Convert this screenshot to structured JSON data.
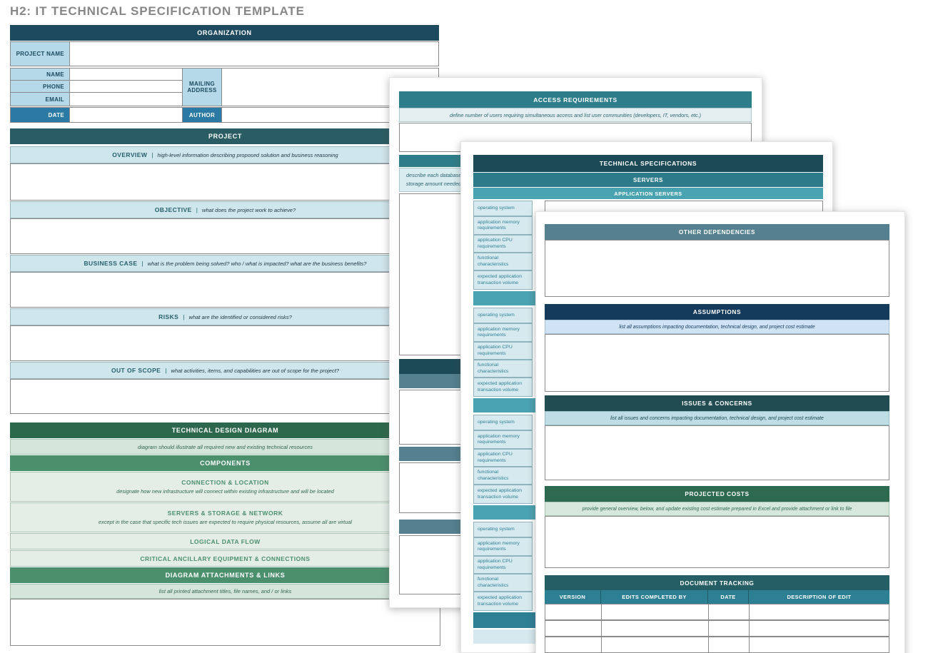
{
  "title": "H2: IT TECHNICAL SPECIFICATION TEMPLATE",
  "sep": "|",
  "palette": {
    "navy_header": "#1d4a5f",
    "dark_teal_header": "#2a5d63",
    "label_blue": "#b5d9e8",
    "date_author_blue": "#2a7aa5",
    "bar_blue": "#cfe6ec",
    "dark_green": "#2e684c",
    "mid_green": "#4b8f6d",
    "light_green": "#d5e5da",
    "teal_header": "#2d7e8a",
    "light_teal_band": "#4aa3b0",
    "slate_header": "#54808f",
    "assumptions_navy": "#143a5c",
    "issues_teal": "#214c52",
    "doc_tracking_teal": "#265e66",
    "doc_tracking_sub": "#2d7f94",
    "title_gray": "#878787"
  },
  "organization": {
    "header": "ORGANIZATION",
    "project_name_label": "PROJECT NAME",
    "name_label": "NAME",
    "phone_label": "PHONE",
    "email_label": "EMAIL",
    "mailing_address_label": "MAILING ADDRESS",
    "date_label": "DATE",
    "author_label": "AUTHOR"
  },
  "project": {
    "header": "PROJECT",
    "sections": [
      {
        "label": "OVERVIEW",
        "desc": "high-level information describing proposed solution and business reasoning"
      },
      {
        "label": "OBJECTIVE",
        "desc": "what does the project work to achieve?"
      },
      {
        "label": "BUSINESS CASE",
        "desc": "what is the problem being solved?  who / what is impacted?  what are the business benefits?"
      },
      {
        "label": "RISKS",
        "desc": "what are the identified or considered risks?"
      },
      {
        "label": "OUT OF SCOPE",
        "desc": "what activities, items, and capabilities are out of scope for the project?"
      }
    ]
  },
  "technical_design": {
    "header": "TECHNICAL DESIGN DIAGRAM",
    "instruction": "diagram should illustrate all required new and existing technical resources",
    "components_header": "COMPONENTS",
    "components": [
      {
        "label": "CONNECTION & LOCATION",
        "desc": "designate how new infrastructure will connect within existing infrastructure and will be located"
      },
      {
        "label": "SERVERS & STORAGE & NETWORK",
        "desc": "except in the case that specific tech issues are expected to require physical resources, assume all are virtual"
      },
      {
        "label": "LOGICAL DATA FLOW",
        "desc": ""
      },
      {
        "label": "CRITICAL ANCILLARY EQUIPMENT & CONNECTIONS",
        "desc": ""
      }
    ],
    "attachments_header": "DIAGRAM ATTACHMENTS & LINKS",
    "attachments_instruction": "list all printed attachment titles, file names, and / or links"
  },
  "access_requirements": {
    "header": "ACCESS REQUIREMENTS",
    "instruction": "define number of users requiring simultaneous access and list user communities (developers, IT, vendors, etc.)",
    "database_instruction_lines": [
      "describe each database",
      "storage amount needed"
    ]
  },
  "technical_specifications": {
    "header": "TECHNICAL SPECIFICATIONS",
    "servers_header": "SERVERS",
    "application_servers_header": "APPLICATION SERVERS",
    "server_labels": [
      "operating system",
      "application memory requirements",
      "application CPU requirements",
      "functional characteristics",
      "expected application transaction volume"
    ],
    "group_count": 4
  },
  "dependencies_page": {
    "other_dependencies_header": "OTHER DEPENDENCIES",
    "assumptions_header": "ASSUMPTIONS",
    "assumptions_instruction": "list all assumptions impacting documentation, technical design, and project cost estimate",
    "issues_header": "ISSUES & CONCERNS",
    "issues_instruction": "list all issues and concerns impacting documentation, technical design, and project cost estimate",
    "costs_header": "PROJECTED COSTS",
    "costs_instruction": "provide general overview, below, and update existing cost estimate prepared in Excel and provide attachment or link to file",
    "document_tracking": {
      "header": "DOCUMENT TRACKING",
      "columns": [
        "VERSION",
        "EDITS COMPLETED BY",
        "DATE",
        "DESCRIPTION OF EDIT"
      ],
      "empty_row_count": 4
    }
  }
}
